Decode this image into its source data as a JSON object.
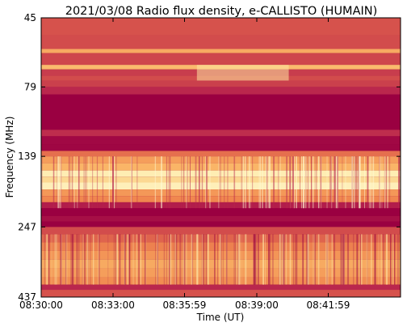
{
  "chart_data": {
    "type": "heatmap",
    "title": "2021/03/08  Radio flux density, e-CALLISTO (HUMAIN)",
    "xlabel": "Time (UT)",
    "ylabel": "Frequency (MHz)",
    "x_tick_labels": [
      "08:30:00",
      "08:33:00",
      "08:35:59",
      "08:39:00",
      "08:41:59"
    ],
    "x_range": [
      "08:30:00",
      "08:45:00"
    ],
    "y_tick_labels": [
      "45",
      "79",
      "139",
      "247",
      "437"
    ],
    "y_range_mhz": [
      45,
      437
    ],
    "y_axis_direction": "increasing downward",
    "colormap": [
      "#9a0041",
      "#b7234d",
      "#d9564c",
      "#f0874f",
      "#fab768",
      "#fde7a6",
      "#fffbd5"
    ],
    "grid": false,
    "legend": "none",
    "frequency_bands": [
      {
        "mhz": [
          45,
          52
        ],
        "level": 0.32
      },
      {
        "mhz": [
          52,
          58
        ],
        "level": 0.3
      },
      {
        "mhz": [
          58,
          60
        ],
        "level": 0.62
      },
      {
        "mhz": [
          60,
          66
        ],
        "level": 0.28
      },
      {
        "mhz": [
          66,
          68.5
        ],
        "level": 0.68
      },
      {
        "mhz": [
          68.5,
          72
        ],
        "level": 0.25
      },
      {
        "mhz": [
          72,
          75
        ],
        "level": 0.3
      },
      {
        "mhz": [
          75,
          79
        ],
        "level": 0.26
      },
      {
        "mhz": [
          79,
          84
        ],
        "level": 0.18
      },
      {
        "mhz": [
          84,
          112
        ],
        "level": 0.0
      },
      {
        "mhz": [
          112,
          118
        ],
        "level": 0.2
      },
      {
        "mhz": [
          118,
          126
        ],
        "level": 0.04
      },
      {
        "mhz": [
          126,
          133
        ],
        "level": 0.03
      },
      {
        "mhz": [
          133,
          139
        ],
        "level": 0.42
      },
      {
        "mhz": [
          139,
          147
        ],
        "level": 0.58
      },
      {
        "mhz": [
          147,
          156
        ],
        "level": 0.66
      },
      {
        "mhz": [
          156,
          164
        ],
        "level": 0.88
      },
      {
        "mhz": [
          164,
          172
        ],
        "level": 0.78
      },
      {
        "mhz": [
          172,
          182
        ],
        "level": 0.9
      },
      {
        "mhz": [
          182,
          192
        ],
        "level": 0.56
      },
      {
        "mhz": [
          192,
          202
        ],
        "level": 0.5
      },
      {
        "mhz": [
          202,
          212
        ],
        "level": 0.14
      },
      {
        "mhz": [
          212,
          226
        ],
        "level": 0.0
      },
      {
        "mhz": [
          226,
          236
        ],
        "level": 0.07
      },
      {
        "mhz": [
          236,
          247
        ],
        "level": 0.0
      },
      {
        "mhz": [
          247,
          262
        ],
        "level": 0.3
      },
      {
        "mhz": [
          262,
          280
        ],
        "level": 0.38
      },
      {
        "mhz": [
          280,
          300
        ],
        "level": 0.48
      },
      {
        "mhz": [
          300,
          322
        ],
        "level": 0.55
      },
      {
        "mhz": [
          322,
          346
        ],
        "level": 0.62
      },
      {
        "mhz": [
          346,
          372
        ],
        "level": 0.58
      },
      {
        "mhz": [
          372,
          395
        ],
        "level": 0.52
      },
      {
        "mhz": [
          395,
          412
        ],
        "level": 0.18
      },
      {
        "mhz": [
          412,
          437
        ],
        "level": 0.32
      }
    ],
    "enhanced_interval": {
      "time": [
        "08:36:30",
        "08:40:20"
      ],
      "mhz": [
        66,
        75
      ],
      "level": 0.82
    }
  }
}
